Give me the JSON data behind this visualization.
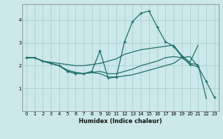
{
  "xlabel": "Humidex (Indice chaleur)",
  "bg_color": "#cce8e8",
  "grid_color": "#aad0d0",
  "line_color": "#1a6e6a",
  "xlim": [
    -0.5,
    23.5
  ],
  "ylim": [
    0.0,
    4.7
  ],
  "yticks": [
    1,
    2,
    3,
    4
  ],
  "xticks": [
    0,
    1,
    2,
    3,
    4,
    5,
    6,
    7,
    8,
    9,
    10,
    11,
    12,
    13,
    14,
    15,
    16,
    17,
    18,
    19,
    20,
    21,
    22,
    23
  ],
  "series": [
    {
      "x": [
        0,
        1,
        2,
        3,
        4,
        5,
        6,
        7,
        8,
        9,
        10,
        11,
        12,
        13,
        14,
        15,
        16,
        17,
        18,
        19,
        20,
        21,
        22,
        23
      ],
      "y": [
        2.35,
        2.35,
        2.2,
        2.1,
        2.0,
        1.75,
        1.65,
        1.65,
        1.75,
        2.65,
        1.45,
        1.5,
        3.05,
        3.95,
        4.3,
        4.4,
        3.7,
        3.05,
        2.85,
        2.4,
        2.05,
        1.95,
        1.3,
        0.6
      ],
      "linestyle": "-",
      "marker": "+"
    },
    {
      "x": [
        0,
        1,
        2,
        3,
        4,
        5,
        6,
        7,
        8,
        9,
        10,
        11,
        12,
        13,
        14,
        15,
        16,
        17,
        18,
        19,
        20,
        21
      ],
      "y": [
        2.35,
        2.35,
        2.2,
        2.15,
        2.1,
        2.05,
        2.0,
        2.0,
        2.05,
        2.1,
        2.2,
        2.3,
        2.5,
        2.6,
        2.7,
        2.75,
        2.8,
        2.85,
        2.9,
        2.45,
        2.15,
        2.9
      ],
      "linestyle": "-",
      "marker": null
    },
    {
      "x": [
        0,
        1,
        2,
        3,
        4,
        5,
        6,
        7,
        8,
        9,
        10,
        11,
        12,
        13,
        14,
        15,
        16,
        17,
        18,
        19,
        20,
        21,
        22
      ],
      "y": [
        2.35,
        2.35,
        2.2,
        2.1,
        2.0,
        1.8,
        1.7,
        1.65,
        1.7,
        1.75,
        1.65,
        1.65,
        1.75,
        1.85,
        2.0,
        2.1,
        2.2,
        2.35,
        2.4,
        2.35,
        2.1,
        2.05,
        0.55
      ],
      "linestyle": "-",
      "marker": null
    },
    {
      "x": [
        0,
        1,
        2,
        3,
        4,
        5,
        6,
        7,
        8,
        9,
        10,
        11,
        12,
        13,
        14,
        15,
        16,
        17,
        18,
        19,
        20,
        21
      ],
      "y": [
        2.35,
        2.35,
        2.2,
        2.1,
        2.0,
        1.8,
        1.7,
        1.65,
        1.7,
        1.65,
        1.5,
        1.5,
        1.55,
        1.6,
        1.7,
        1.8,
        1.9,
        2.0,
        2.1,
        2.35,
        2.4,
        1.95
      ],
      "linestyle": "-",
      "marker": null
    }
  ]
}
